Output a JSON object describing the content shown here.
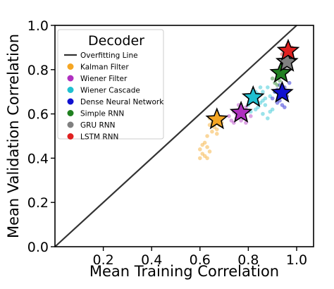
{
  "chart_data": {
    "type": "scatter",
    "xlabel": "Mean Training Correlation",
    "ylabel": "Mean Validation Correlation",
    "xlim": [
      0.0,
      1.07
    ],
    "ylim": [
      0.0,
      1.0
    ],
    "xticks": [
      0.2,
      0.4,
      0.6,
      0.8,
      1.0
    ],
    "xtick_labels": [
      "0.2",
      "0.4",
      "0.6",
      "0.8",
      "1.0"
    ],
    "yticks": [
      0.0,
      0.2,
      0.4,
      0.6,
      0.8,
      1.0
    ],
    "ytick_labels": [
      "0.0",
      "0.2",
      "0.4",
      "0.6",
      "0.8",
      "1.0"
    ],
    "grid": false,
    "legend": {
      "title": "Decoder",
      "placement": "upper-left",
      "line_label": "Overfitting Line",
      "line_color": "#333333"
    },
    "overfitting_line": {
      "x": [
        0.0,
        1.0
      ],
      "y": [
        0.0,
        1.0
      ]
    },
    "series": [
      {
        "name": "Kalman Filter",
        "color": "#f5a623",
        "mean": [
          0.67,
          0.575
        ],
        "points": [
          [
            0.6,
            0.44
          ],
          [
            0.61,
            0.46
          ],
          [
            0.62,
            0.47
          ],
          [
            0.61,
            0.42
          ],
          [
            0.63,
            0.45
          ],
          [
            0.62,
            0.41
          ],
          [
            0.64,
            0.43
          ],
          [
            0.63,
            0.4
          ],
          [
            0.6,
            0.4
          ],
          [
            0.65,
            0.56
          ],
          [
            0.66,
            0.54
          ],
          [
            0.64,
            0.55
          ],
          [
            0.67,
            0.53
          ],
          [
            0.65,
            0.52
          ],
          [
            0.66,
            0.57
          ],
          [
            0.68,
            0.55
          ],
          [
            0.63,
            0.5
          ],
          [
            0.67,
            0.51
          ],
          [
            0.64,
            0.58
          ],
          [
            0.69,
            0.56
          ]
        ]
      },
      {
        "name": "Wiener Filter",
        "color": "#b030c0",
        "mean": [
          0.77,
          0.605
        ],
        "points": [
          [
            0.72,
            0.59
          ],
          [
            0.74,
            0.61
          ],
          [
            0.75,
            0.58
          ],
          [
            0.73,
            0.57
          ],
          [
            0.76,
            0.62
          ],
          [
            0.78,
            0.6
          ],
          [
            0.77,
            0.57
          ],
          [
            0.79,
            0.63
          ],
          [
            0.8,
            0.61
          ],
          [
            0.75,
            0.6
          ],
          [
            0.74,
            0.56
          ],
          [
            0.78,
            0.58
          ],
          [
            0.81,
            0.59
          ],
          [
            0.76,
            0.64
          ],
          [
            0.79,
            0.56
          ]
        ]
      },
      {
        "name": "Wiener Cascade",
        "color": "#20c0d0",
        "mean": [
          0.82,
          0.675
        ],
        "points": [
          [
            0.8,
            0.64
          ],
          [
            0.82,
            0.66
          ],
          [
            0.84,
            0.69
          ],
          [
            0.86,
            0.7
          ],
          [
            0.83,
            0.62
          ],
          [
            0.85,
            0.65
          ],
          [
            0.87,
            0.67
          ],
          [
            0.81,
            0.61
          ],
          [
            0.88,
            0.72
          ],
          [
            0.84,
            0.63
          ],
          [
            0.86,
            0.6
          ],
          [
            0.89,
            0.68
          ],
          [
            0.9,
            0.62
          ],
          [
            0.88,
            0.58
          ],
          [
            0.87,
            0.64
          ],
          [
            0.83,
            0.7
          ],
          [
            0.85,
            0.72
          ],
          [
            0.91,
            0.7
          ],
          [
            0.89,
            0.61
          ],
          [
            0.86,
            0.66
          ]
        ]
      },
      {
        "name": "Dense Neural Network",
        "color": "#1010d0",
        "mean": [
          0.94,
          0.695
        ],
        "points": [
          [
            0.9,
            0.67
          ],
          [
            0.92,
            0.71
          ],
          [
            0.93,
            0.66
          ],
          [
            0.95,
            0.72
          ],
          [
            0.96,
            0.68
          ],
          [
            0.94,
            0.64
          ],
          [
            0.91,
            0.7
          ],
          [
            0.97,
            0.74
          ],
          [
            0.95,
            0.63
          ],
          [
            0.93,
            0.73
          ],
          [
            0.92,
            0.65
          ],
          [
            0.96,
            0.7
          ]
        ]
      },
      {
        "name": "Simple RNN",
        "color": "#208020",
        "mean": [
          0.935,
          0.785
        ],
        "points": [
          [
            0.9,
            0.76
          ],
          [
            0.92,
            0.78
          ],
          [
            0.93,
            0.8
          ],
          [
            0.94,
            0.77
          ],
          [
            0.95,
            0.82
          ],
          [
            0.91,
            0.74
          ],
          [
            0.96,
            0.79
          ],
          [
            0.93,
            0.75
          ],
          [
            0.94,
            0.81
          ],
          [
            0.92,
            0.73
          ]
        ]
      },
      {
        "name": "GRU RNN",
        "color": "#808080",
        "mean": [
          0.96,
          0.835
        ],
        "points": [
          [
            0.94,
            0.82
          ],
          [
            0.95,
            0.84
          ],
          [
            0.96,
            0.86
          ],
          [
            0.97,
            0.83
          ],
          [
            0.95,
            0.8
          ],
          [
            0.97,
            0.87
          ],
          [
            0.93,
            0.81
          ],
          [
            0.96,
            0.8
          ],
          [
            0.94,
            0.78
          ],
          [
            0.98,
            0.85
          ]
        ]
      },
      {
        "name": "LSTM RNN",
        "color": "#e02020",
        "mean": [
          0.965,
          0.885
        ],
        "points": [
          [
            0.95,
            0.86
          ],
          [
            0.96,
            0.88
          ],
          [
            0.97,
            0.9
          ],
          [
            0.98,
            0.87
          ],
          [
            0.96,
            0.91
          ],
          [
            0.97,
            0.85
          ],
          [
            0.95,
            0.89
          ],
          [
            0.98,
            0.9
          ],
          [
            0.94,
            0.87
          ],
          [
            0.97,
            0.88
          ]
        ]
      }
    ]
  }
}
